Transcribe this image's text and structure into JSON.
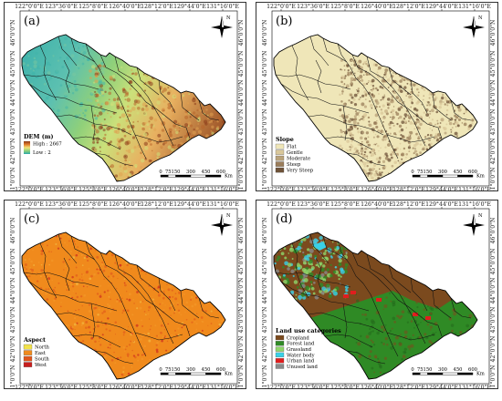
{
  "axes": {
    "lon_labels": [
      "122°0'0\"E",
      "123°36'0\"E",
      "125°8'0\"E",
      "126°40'0\"E",
      "128°12'0\"E",
      "129°44'0\"E",
      "131°16'0\"E"
    ],
    "lat_labels": [
      "46°0'0\"N",
      "45°0'0\"N",
      "44°0'0\"N",
      "43°0'0\"N",
      "42°0'0\"N",
      "41°0'0\"N"
    ]
  },
  "north_arrow": {
    "label": "N"
  },
  "scale_bar": {
    "ticks": [
      "0",
      "75",
      "150",
      "300",
      "450",
      "600"
    ],
    "unit": "Km"
  },
  "panels": [
    {
      "id": "a",
      "label": "(a)",
      "legend": {
        "title": "DEM (m)",
        "items": [
          {
            "label": "High : 2667",
            "color": "#8b3a1a"
          },
          {
            "label": "Low : 2",
            "color": "#2aa8a8"
          }
        ]
      }
    },
    {
      "id": "b",
      "label": "(b)",
      "legend": {
        "title": "Slope",
        "items": [
          {
            "label": "Flat",
            "color": "#efe6b8"
          },
          {
            "label": "Gentle",
            "color": "#d9c79a"
          },
          {
            "label": "Moderate",
            "color": "#b9a27a"
          },
          {
            "label": "Steep",
            "color": "#9a7d5a"
          },
          {
            "label": "Very Steep",
            "color": "#6e5238"
          }
        ]
      }
    },
    {
      "id": "c",
      "label": "(c)",
      "legend": {
        "title": "Aspect",
        "items": [
          {
            "label": "North",
            "color": "#f2e24a"
          },
          {
            "label": "East",
            "color": "#f08a1c"
          },
          {
            "label": "South",
            "color": "#e0551a"
          },
          {
            "label": "West",
            "color": "#c81e1e"
          }
        ]
      }
    },
    {
      "id": "d",
      "label": "(d)",
      "legend": {
        "title": "Land use categories",
        "items": [
          {
            "label": "Cropland",
            "color": "#7b4a1e"
          },
          {
            "label": "Forest land",
            "color": "#2f8a25"
          },
          {
            "label": "Grassland",
            "color": "#8fd66a"
          },
          {
            "label": "Water body",
            "color": "#3ad0e6"
          },
          {
            "label": "Urban land",
            "color": "#e01e1e"
          },
          {
            "label": "Unused land",
            "color": "#8a8a8a"
          }
        ]
      }
    }
  ]
}
